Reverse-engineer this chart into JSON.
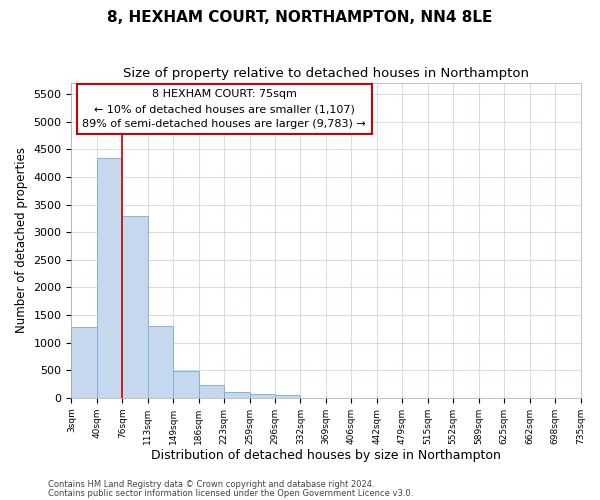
{
  "title1": "8, HEXHAM COURT, NORTHAMPTON, NN4 8LE",
  "title2": "Size of property relative to detached houses in Northampton",
  "xlabel": "Distribution of detached houses by size in Northampton",
  "ylabel": "Number of detached properties",
  "bar_values": [
    1280,
    4350,
    3300,
    1300,
    480,
    230,
    100,
    75,
    50,
    0,
    0,
    0,
    0,
    0,
    0,
    0,
    0,
    0,
    0,
    0
  ],
  "bar_labels": [
    "3sqm",
    "40sqm",
    "76sqm",
    "113sqm",
    "149sqm",
    "186sqm",
    "223sqm",
    "259sqm",
    "296sqm",
    "332sqm",
    "369sqm",
    "406sqm",
    "442sqm",
    "479sqm",
    "515sqm",
    "552sqm",
    "589sqm",
    "625sqm",
    "662sqm",
    "698sqm",
    "735sqm"
  ],
  "bar_color": "#c5d8ee",
  "bar_edge_color": "#7aadd4",
  "vline_color": "#cc0000",
  "vline_x": 2.0,
  "annotation_text": "8 HEXHAM COURT: 75sqm\n← 10% of detached houses are smaller (1,107)\n89% of semi-detached houses are larger (9,783) →",
  "annotation_box_color": "#ffffff",
  "annotation_box_edge": "#cc0000",
  "ylim": [
    0,
    5700
  ],
  "yticks": [
    0,
    500,
    1000,
    1500,
    2000,
    2500,
    3000,
    3500,
    4000,
    4500,
    5000,
    5500
  ],
  "footer1": "Contains HM Land Registry data © Crown copyright and database right 2024.",
  "footer2": "Contains public sector information licensed under the Open Government Licence v3.0.",
  "bg_color": "#ffffff",
  "grid_color": "#c8d8e8",
  "title1_fontsize": 11,
  "title2_fontsize": 9.5,
  "xlabel_fontsize": 9,
  "ylabel_fontsize": 8.5,
  "annot_fontsize": 8,
  "footer_fontsize": 6
}
